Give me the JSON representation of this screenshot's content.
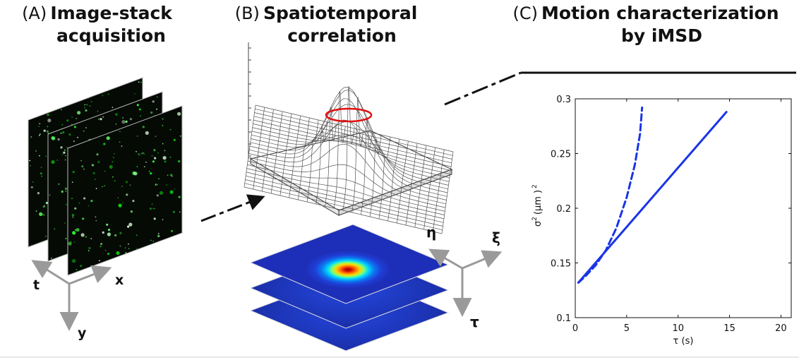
{
  "panel_a": {
    "letter": "(A)",
    "title1": "Image-stack",
    "title2": "acquisition",
    "axes": {
      "t": "t",
      "x": "x",
      "y": "y"
    }
  },
  "panel_b": {
    "letter": "(B)",
    "title1": "Spatiotemporal",
    "title2": "correlation",
    "axes": {
      "eta": "η",
      "xi": "ξ",
      "tau": "τ"
    }
  },
  "panel_c": {
    "letter": "(C)",
    "title1": "Motion characterization",
    "title2": "by iMSD"
  },
  "chart_data": {
    "type": "line",
    "xlabel": "τ (s)",
    "ylabel_base": "σ",
    "ylabel_unit": "(μm )",
    "xlim": [
      0,
      21
    ],
    "ylim": [
      0.1,
      0.3
    ],
    "xticks": [
      0,
      5,
      10,
      15,
      20
    ],
    "xticklabels": [
      "0",
      "5",
      "10",
      "15",
      "20"
    ],
    "yticks": [
      0.1,
      0.15,
      0.2,
      0.25,
      0.3
    ],
    "yticklabels": [
      "0.1",
      "0.15",
      "0.2",
      "0.25",
      "0.3"
    ],
    "series": [
      {
        "style": "dashed",
        "color": "#1a35e6",
        "x": [
          0.3,
          1.0,
          2.0,
          3.0,
          4.0,
          5.0,
          5.8,
          6.3,
          6.5
        ],
        "y": [
          0.132,
          0.138,
          0.148,
          0.162,
          0.182,
          0.21,
          0.24,
          0.268,
          0.292
        ]
      },
      {
        "style": "solid",
        "color": "#1a35e6",
        "x": [
          0.3,
          14.7
        ],
        "y": [
          0.132,
          0.288
        ]
      }
    ]
  }
}
